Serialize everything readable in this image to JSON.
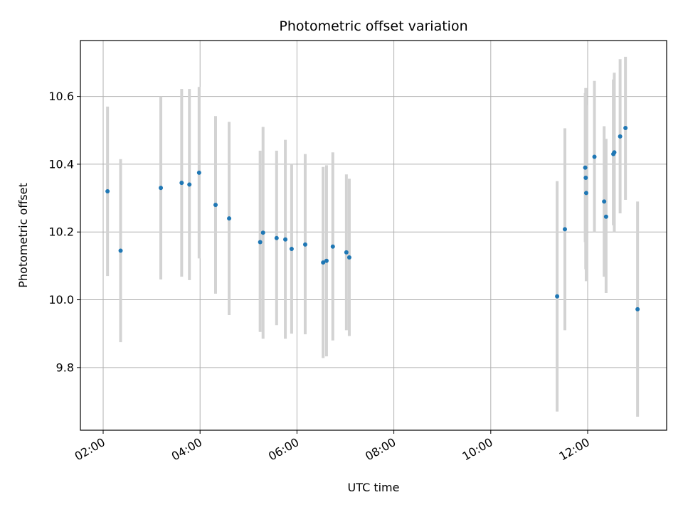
{
  "chart_data": {
    "type": "scatter",
    "title": "Photometric offset variation",
    "xlabel": "UTC time",
    "ylabel": "Photometric offset",
    "x_unit": "hours (UTC)",
    "xlim": [
      1.53,
      13.63
    ],
    "ylim": [
      9.615,
      10.765
    ],
    "x_ticks": [
      {
        "value": 2,
        "label": "02:00"
      },
      {
        "value": 4,
        "label": "04:00"
      },
      {
        "value": 6,
        "label": "06:00"
      },
      {
        "value": 8,
        "label": "08:00"
      },
      {
        "value": 10,
        "label": "10:00"
      },
      {
        "value": 12,
        "label": "12:00"
      }
    ],
    "y_ticks": [
      {
        "value": 9.8,
        "label": "9.8"
      },
      {
        "value": 10.0,
        "label": "10.0"
      },
      {
        "value": 10.2,
        "label": "10.2"
      },
      {
        "value": 10.4,
        "label": "10.4"
      },
      {
        "value": 10.6,
        "label": "10.6"
      }
    ],
    "grid": true,
    "marker_color": "#1f77b4",
    "errorbar_color": "#d3d3d3",
    "points": [
      {
        "x": 2.09,
        "y": 10.32,
        "ylow": 10.07,
        "yhigh": 10.57
      },
      {
        "x": 2.36,
        "y": 10.145,
        "ylow": 9.875,
        "yhigh": 10.415
      },
      {
        "x": 3.19,
        "y": 10.33,
        "ylow": 10.06,
        "yhigh": 10.6
      },
      {
        "x": 3.62,
        "y": 10.345,
        "ylow": 10.068,
        "yhigh": 10.622
      },
      {
        "x": 3.78,
        "y": 10.34,
        "ylow": 10.058,
        "yhigh": 10.622
      },
      {
        "x": 3.98,
        "y": 10.375,
        "ylow": 10.122,
        "yhigh": 10.628
      },
      {
        "x": 4.32,
        "y": 10.28,
        "ylow": 10.018,
        "yhigh": 10.542
      },
      {
        "x": 4.6,
        "y": 10.24,
        "ylow": 9.955,
        "yhigh": 10.525
      },
      {
        "x": 5.24,
        "y": 10.17,
        "ylow": 9.905,
        "yhigh": 10.44
      },
      {
        "x": 5.3,
        "y": 10.198,
        "ylow": 9.885,
        "yhigh": 10.51
      },
      {
        "x": 5.58,
        "y": 10.182,
        "ylow": 9.925,
        "yhigh": 10.44
      },
      {
        "x": 5.76,
        "y": 10.178,
        "ylow": 9.885,
        "yhigh": 10.472
      },
      {
        "x": 5.89,
        "y": 10.15,
        "ylow": 9.9,
        "yhigh": 10.4
      },
      {
        "x": 6.17,
        "y": 10.163,
        "ylow": 9.898,
        "yhigh": 10.43
      },
      {
        "x": 6.54,
        "y": 10.11,
        "ylow": 9.828,
        "yhigh": 10.392
      },
      {
        "x": 6.61,
        "y": 10.115,
        "ylow": 9.833,
        "yhigh": 10.397
      },
      {
        "x": 6.74,
        "y": 10.157,
        "ylow": 9.88,
        "yhigh": 10.435
      },
      {
        "x": 7.02,
        "y": 10.14,
        "ylow": 9.91,
        "yhigh": 10.37
      },
      {
        "x": 7.08,
        "y": 10.125,
        "ylow": 9.893,
        "yhigh": 10.357
      },
      {
        "x": 11.37,
        "y": 10.01,
        "ylow": 9.67,
        "yhigh": 10.35
      },
      {
        "x": 11.53,
        "y": 10.208,
        "ylow": 9.91,
        "yhigh": 10.506
      },
      {
        "x": 11.95,
        "y": 10.39,
        "ylow": 10.17,
        "yhigh": 10.61
      },
      {
        "x": 11.96,
        "y": 10.36,
        "ylow": 10.09,
        "yhigh": 10.625
      },
      {
        "x": 11.97,
        "y": 10.315,
        "ylow": 10.055,
        "yhigh": 10.575
      },
      {
        "x": 12.14,
        "y": 10.422,
        "ylow": 10.2,
        "yhigh": 10.646
      },
      {
        "x": 12.34,
        "y": 10.29,
        "ylow": 10.068,
        "yhigh": 10.512
      },
      {
        "x": 12.38,
        "y": 10.245,
        "ylow": 10.02,
        "yhigh": 10.475
      },
      {
        "x": 12.53,
        "y": 10.43,
        "ylow": 10.22,
        "yhigh": 10.65
      },
      {
        "x": 12.55,
        "y": 10.435,
        "ylow": 10.2,
        "yhigh": 10.67
      },
      {
        "x": 12.67,
        "y": 10.482,
        "ylow": 10.255,
        "yhigh": 10.71
      },
      {
        "x": 12.78,
        "y": 10.507,
        "ylow": 10.295,
        "yhigh": 10.717
      },
      {
        "x": 13.03,
        "y": 9.972,
        "ylow": 9.655,
        "yhigh": 10.29
      }
    ]
  }
}
